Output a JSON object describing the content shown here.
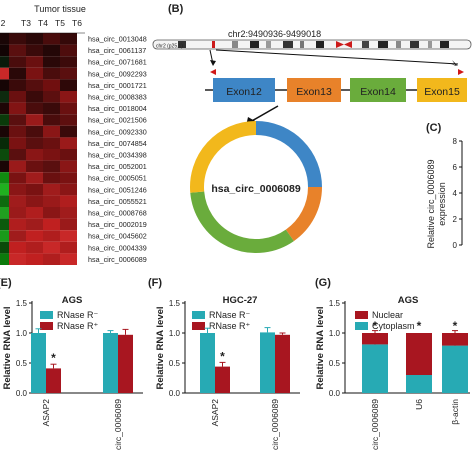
{
  "panel_labels": {
    "b": "(B)",
    "c": "(C)",
    "e": "(E)",
    "f": "(F)",
    "g": "(G)"
  },
  "heatmap": {
    "header": "Tumor tissue",
    "columns": [
      "2",
      "T3",
      "T4",
      "T5",
      "T6"
    ],
    "rows": [
      "hsa_circ_0013048",
      "hsa_circ_0061137",
      "hsa_circ_0071681",
      "hsa_circ_0092293",
      "hsa_circ_0001721",
      "hsa_circ_0008383",
      "hsa_circ_0018004",
      "hsa_circ_0021506",
      "hsa_circ_0092330",
      "hsa_circ_0074854",
      "hsa_circ_0034398",
      "hsa_circ_0052001",
      "hsa_circ_0005051",
      "hsa_circ_0051246",
      "hsa_circ_0055521",
      "hsa_circ_0008768",
      "hsa_circ_0002019",
      "hsa_circ_0045602",
      "hsa_circ_0004339",
      "hsa_circ_0006089"
    ],
    "colors": [
      [
        "#1a0606",
        "#3a0a0a",
        "#2a0808",
        "#4a0c0c",
        "#350909"
      ],
      [
        "#120404",
        "#5a0f0f",
        "#3a0a0a",
        "#240707",
        "#4e0d0d"
      ],
      [
        "#0a1a0a",
        "#4a0c0c",
        "#6a1010",
        "#2a0808",
        "#3c0a0a"
      ],
      [
        "#c82828",
        "#2a0808",
        "#7a1212",
        "#4a0c0c",
        "#5a0f0f"
      ],
      [
        "#160505",
        "#3a0a0a",
        "#550e0e",
        "#700f0f",
        "#2e0808"
      ],
      [
        "#0e2a0e",
        "#6a1010",
        "#3a0a0a",
        "#5c0f0f",
        "#8a1616"
      ],
      [
        "#1e0606",
        "#821414",
        "#4a0c0c",
        "#3a0a0a",
        "#6a1010"
      ],
      [
        "#0a3a0a",
        "#5a0f0f",
        "#9a1a1a",
        "#4a0c0c",
        "#5e0f0f"
      ],
      [
        "#1a0606",
        "#6a1010",
        "#4a0c0c",
        "#8a1616",
        "#3a0a0a"
      ],
      [
        "#082a08",
        "#7a1212",
        "#5a0f0f",
        "#6a1010",
        "#9a1a1a"
      ],
      [
        "#0c4a0c",
        "#5a0f0f",
        "#8a1616",
        "#7a1212",
        "#6a1010"
      ],
      [
        "#1a0606",
        "#9a1a1a",
        "#6a1010",
        "#5a0f0f",
        "#8a1616"
      ],
      [
        "#108a10",
        "#7a1212",
        "#a01c1c",
        "#6a1010",
        "#7a1212"
      ],
      [
        "#20b020",
        "#8a1616",
        "#7a1212",
        "#a01c1c",
        "#8a1616"
      ],
      [
        "#0e6a0e",
        "#a01c1c",
        "#8a1616",
        "#9a1a1a",
        "#b01e1e"
      ],
      [
        "#20a020",
        "#9a1a1a",
        "#b01e1e",
        "#8a1616",
        "#a01c1c"
      ],
      [
        "#0c5a0c",
        "#b01e1e",
        "#a01c1c",
        "#c02020",
        "#9a1a1a"
      ],
      [
        "#1a9a1a",
        "#a01c1c",
        "#c02020",
        "#b01e1e",
        "#c82828"
      ],
      [
        "#0a4a0a",
        "#c02020",
        "#b01e1e",
        "#c82828",
        "#b01e1e"
      ],
      [
        "#0c7a0c",
        "#c82828",
        "#c02020",
        "#b01e1e",
        "#c82828"
      ]
    ]
  },
  "genome": {
    "locus": "chr2:9490936-9499018",
    "ideogram_label": "chr2 (p25.1)",
    "exons": [
      {
        "label": "Exon12",
        "color": "#3e86c6"
      },
      {
        "label": "Exon13",
        "color": "#e8822a"
      },
      {
        "label": "Exon14",
        "color": "#6aac3c"
      },
      {
        "label": "Exon15",
        "color": "#f2b81c"
      }
    ],
    "circ_name": "hsa_circ_0006089"
  },
  "panel_c": {
    "ylabel": "Relative circ_0006089\nexpression",
    "ticks": [
      "8",
      "6",
      "4",
      "2",
      "0"
    ]
  },
  "chart_data": [
    {
      "panel": "(E)",
      "type": "bar",
      "title": "AGS",
      "ylabel": "Relative RNA level",
      "ylim": [
        0,
        1.5
      ],
      "yticks": [
        "0.0",
        "0.5",
        "1.0",
        "1.5"
      ],
      "categories": [
        "ASAP2",
        "circ_0006089"
      ],
      "legend": [
        "RNase R⁻",
        "RNase R⁺"
      ],
      "series": [
        {
          "name": "RNase R⁻",
          "color": "#27aab4",
          "values": [
            1.0,
            1.0
          ],
          "errors": [
            0.07,
            0.04
          ]
        },
        {
          "name": "RNase R⁺",
          "color": "#a81620",
          "values": [
            0.41,
            0.97
          ],
          "errors": [
            0.07,
            0.09
          ]
        }
      ],
      "annotations": [
        {
          "category": "ASAP2",
          "series": "RNase R⁺",
          "text": "*"
        }
      ]
    },
    {
      "panel": "(F)",
      "type": "bar",
      "title": "HGC-27",
      "ylabel": "Relative RNA level",
      "ylim": [
        0,
        1.5
      ],
      "yticks": [
        "0.0",
        "0.5",
        "1.0",
        "1.5"
      ],
      "categories": [
        "ASAP2",
        "circ_0006089"
      ],
      "legend": [
        "RNase R⁻",
        "RNase R⁺"
      ],
      "series": [
        {
          "name": "RNase R⁻",
          "color": "#27aab4",
          "values": [
            1.0,
            1.01
          ],
          "errors": [
            0.08,
            0.08
          ]
        },
        {
          "name": "RNase R⁺",
          "color": "#a81620",
          "values": [
            0.44,
            0.97
          ],
          "errors": [
            0.07,
            0.03
          ]
        }
      ],
      "annotations": [
        {
          "category": "ASAP2",
          "series": "RNase R⁺",
          "text": "*"
        }
      ]
    },
    {
      "panel": "(G)",
      "type": "bar",
      "stacked": true,
      "title": "AGS",
      "ylabel": "Relative RNA level",
      "ylim": [
        0,
        1.5
      ],
      "yticks": [
        "0.0",
        "0.5",
        "1.0",
        "1.5"
      ],
      "categories": [
        "circ_0006089",
        "U6",
        "β-actin"
      ],
      "legend": [
        "Nuclear",
        "Cytoplasm"
      ],
      "series": [
        {
          "name": "Cytoplasm",
          "color": "#27aab4",
          "values": [
            0.81,
            0.3,
            0.79
          ],
          "errors": [
            0.03,
            0.05,
            0.03
          ]
        },
        {
          "name": "Nuclear",
          "color": "#a81620",
          "values": [
            0.19,
            0.7,
            0.21
          ],
          "errors": [
            0.04,
            0.0,
            0.04
          ]
        }
      ],
      "annotations": [
        {
          "category": "circ_0006089",
          "text": "*"
        },
        {
          "category": "U6",
          "text": "*"
        },
        {
          "category": "β-actin",
          "text": "*"
        }
      ]
    }
  ]
}
